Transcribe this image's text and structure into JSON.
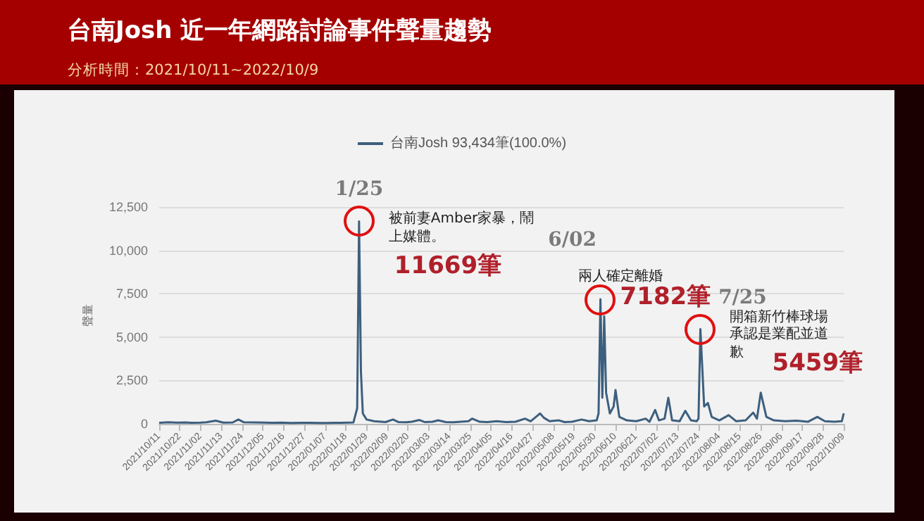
{
  "chart_data": {
    "type": "line",
    "title": "台南Josh  近一年網路討論事件聲量趨勢",
    "subtitle": "分析時間：2021/10/11~2022/10/9",
    "ylabel": "聲量",
    "legend": "top",
    "series": [
      {
        "name": "台南Josh 93,434筆(100.0%)",
        "color": "#3d5f7e",
        "x": [
          "2021-10-11",
          "2021-10-16",
          "2021-10-20",
          "2021-10-25",
          "2021-10-28",
          "2021-11-02",
          "2021-11-05",
          "2021-11-10",
          "2021-11-14",
          "2021-11-19",
          "2021-11-22",
          "2021-11-25",
          "2021-12-01",
          "2021-12-06",
          "2021-12-10",
          "2021-12-15",
          "2021-12-20",
          "2021-12-25",
          "2021-12-30",
          "2022-01-04",
          "2022-01-08",
          "2022-01-12",
          "2022-01-15",
          "2022-01-19",
          "2022-01-22",
          "2022-01-24",
          "2022-01-25",
          "2022-01-26",
          "2022-01-27",
          "2022-01-29",
          "2022-02-02",
          "2022-02-08",
          "2022-02-12",
          "2022-02-15",
          "2022-02-19",
          "2022-02-22",
          "2022-02-26",
          "2022-03-01",
          "2022-03-05",
          "2022-03-08",
          "2022-03-12",
          "2022-03-16",
          "2022-03-20",
          "2022-03-24",
          "2022-03-26",
          "2022-03-30",
          "2022-04-03",
          "2022-04-08",
          "2022-04-13",
          "2022-04-18",
          "2022-04-23",
          "2022-04-26",
          "2022-05-01",
          "2022-05-03",
          "2022-05-06",
          "2022-05-11",
          "2022-05-14",
          "2022-05-18",
          "2022-05-23",
          "2022-05-27",
          "2022-05-31",
          "2022-06-01",
          "2022-06-02",
          "2022-06-03",
          "2022-06-04",
          "2022-06-05",
          "2022-06-07",
          "2022-06-09",
          "2022-06-10",
          "2022-06-12",
          "2022-06-16",
          "2022-06-21",
          "2022-06-26",
          "2022-06-28",
          "2022-07-01",
          "2022-07-03",
          "2022-07-06",
          "2022-07-08",
          "2022-07-10",
          "2022-07-14",
          "2022-07-17",
          "2022-07-20",
          "2022-07-23",
          "2022-07-24",
          "2022-07-25",
          "2022-07-27",
          "2022-07-29",
          "2022-07-31",
          "2022-08-04",
          "2022-08-09",
          "2022-08-13",
          "2022-08-18",
          "2022-08-22",
          "2022-08-24",
          "2022-08-26",
          "2022-08-29",
          "2022-09-02",
          "2022-09-08",
          "2022-09-14",
          "2022-09-20",
          "2022-09-25",
          "2022-09-29",
          "2022-10-04",
          "2022-10-08",
          "2022-10-09"
        ],
        "values": [
          60,
          90,
          70,
          80,
          60,
          70,
          90,
          180,
          70,
          80,
          250,
          90,
          80,
          70,
          60,
          70,
          50,
          60,
          60,
          50,
          50,
          60,
          60,
          70,
          80,
          900,
          11669,
          3000,
          600,
          250,
          150,
          100,
          250,
          100,
          90,
          120,
          220,
          100,
          120,
          200,
          100,
          90,
          120,
          150,
          300,
          120,
          100,
          150,
          100,
          120,
          300,
          150,
          600,
          350,
          150,
          200,
          100,
          120,
          250,
          150,
          200,
          600,
          7182,
          1500,
          6200,
          1800,
          600,
          1000,
          1950,
          400,
          200,
          150,
          300,
          120,
          800,
          200,
          300,
          1500,
          200,
          150,
          750,
          200,
          150,
          300,
          5459,
          1000,
          1200,
          400,
          200,
          500,
          150,
          200,
          650,
          300,
          1800,
          400,
          200,
          150,
          180,
          120,
          400,
          150,
          120,
          150,
          600
        ]
      }
    ],
    "xlim": [
      "2021-10-11",
      "2022-10-09"
    ],
    "xticks": [
      {
        "value": "2021-10-11",
        "label": "2021/10/11"
      },
      {
        "value": "2021-10-22",
        "label": "2021/10/22"
      },
      {
        "value": "2021-11-02",
        "label": "2021/11/02"
      },
      {
        "value": "2021-11-13",
        "label": "2021/11/13"
      },
      {
        "value": "2021-11-24",
        "label": "2021/11/24"
      },
      {
        "value": "2021-12-05",
        "label": "2021/12/05"
      },
      {
        "value": "2021-12-16",
        "label": "2021/12/16"
      },
      {
        "value": "2021-12-27",
        "label": "2021/12/27"
      },
      {
        "value": "2022-01-07",
        "label": "2022/01/07"
      },
      {
        "value": "2022-01-18",
        "label": "2022/01/18"
      },
      {
        "value": "2022-01-29",
        "label": "2022/01/29"
      },
      {
        "value": "2022-02-09",
        "label": "2022/02/09"
      },
      {
        "value": "2022-02-20",
        "label": "2022/02/20"
      },
      {
        "value": "2022-03-03",
        "label": "2022/03/03"
      },
      {
        "value": "2022-03-14",
        "label": "2022/03/14"
      },
      {
        "value": "2022-03-25",
        "label": "2022/03/25"
      },
      {
        "value": "2022-04-05",
        "label": "2022/04/05"
      },
      {
        "value": "2022-04-16",
        "label": "2022/04/16"
      },
      {
        "value": "2022-04-27",
        "label": "2022/04/27"
      },
      {
        "value": "2022-05-08",
        "label": "2022/05/08"
      },
      {
        "value": "2022-05-19",
        "label": "2022/05/19"
      },
      {
        "value": "2022-05-30",
        "label": "2022/05/30"
      },
      {
        "value": "2022-06-10",
        "label": "2022/06/10"
      },
      {
        "value": "2022-06-21",
        "label": "2022/06/21"
      },
      {
        "value": "2022-07-02",
        "label": "2022/07/02"
      },
      {
        "value": "2022-07-13",
        "label": "2022/07/13"
      },
      {
        "value": "2022-07-24",
        "label": "2022/07/24"
      },
      {
        "value": "2022-08-04",
        "label": "2022/08/04"
      },
      {
        "value": "2022-08-15",
        "label": "2022/08/15"
      },
      {
        "value": "2022-08-26",
        "label": "2022/08/26"
      },
      {
        "value": "2022-09-06",
        "label": "2022/09/06"
      },
      {
        "value": "2022-09-17",
        "label": "2022/09/17"
      },
      {
        "value": "2022-09-28",
        "label": "2022/09/28"
      },
      {
        "value": "2022-10-09",
        "label": "2022/10/09"
      }
    ],
    "ylim": [
      0,
      12500
    ],
    "yticks": [
      0,
      {
        "value": 2500,
        "label": "2,500"
      },
      {
        "value": 5000,
        "label": "5,000"
      },
      {
        "value": 7500,
        "label": "7,500"
      },
      {
        "value": 10000,
        "label": "10,000"
      },
      {
        "value": 12500,
        "label": "12,500"
      }
    ],
    "grid": "y",
    "marker": "none",
    "line_style": "solid",
    "annotations": [
      {
        "text": "1/25",
        "x": "2022-01-25",
        "y": 11669
      },
      {
        "text": "被前妻Amber家暴，鬧上媒體。",
        "x": "2022-01-25",
        "y": 11669
      },
      "11669筆",
      {
        "text": "6/02",
        "x": "2022-06-02",
        "y": 7182
      },
      {
        "text": "兩人確定離婚",
        "x": "2022-06-02",
        "y": 7182
      },
      "7182筆",
      {
        "text": "7/25",
        "x": "2022-07-25",
        "y": 5459
      },
      {
        "text": "開箱新竹棒球場承認是業配並道歉",
        "x": "2022-07-25",
        "y": 5459
      },
      "5459筆"
    ]
  }
}
